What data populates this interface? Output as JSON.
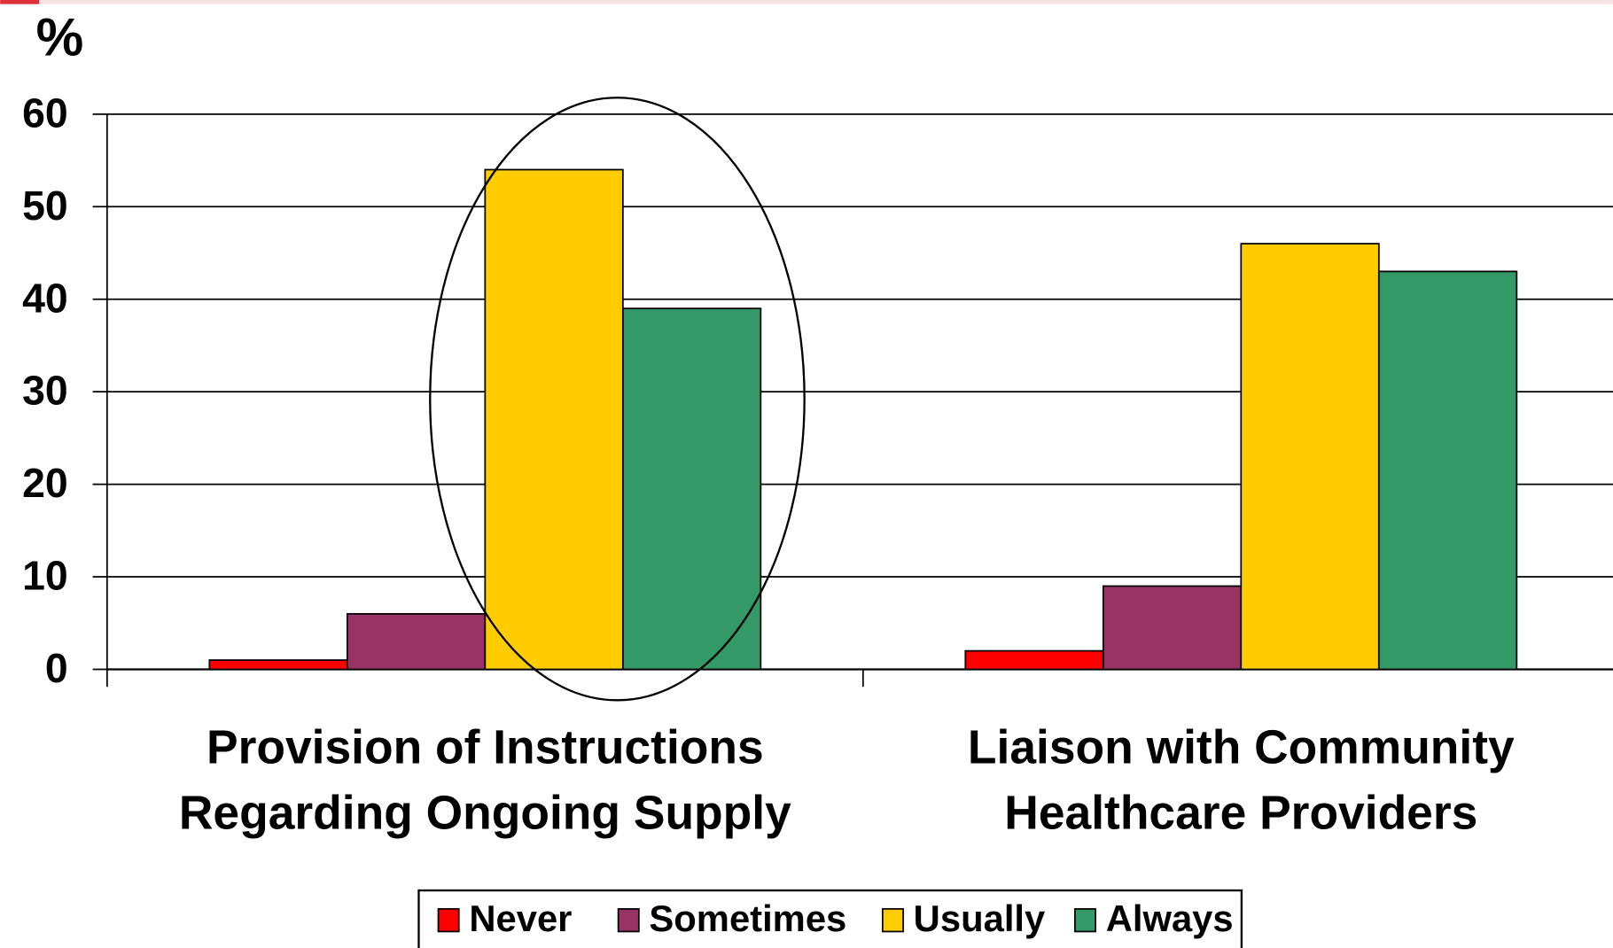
{
  "chart_data": {
    "type": "bar",
    "y_label": "%",
    "categories": [
      [
        "Provision of Instructions",
        "Regarding Ongoing Supply"
      ],
      [
        "Liaison with Community",
        "Healthcare Providers"
      ]
    ],
    "series": [
      {
        "name": "Never",
        "color": "#ff0000",
        "values": [
          1,
          2
        ]
      },
      {
        "name": "Sometimes",
        "color": "#993366",
        "values": [
          6,
          9
        ]
      },
      {
        "name": "Usually",
        "color": "#ffcc00",
        "values": [
          54,
          46
        ]
      },
      {
        "name": "Always",
        "color": "#339966",
        "values": [
          39,
          43
        ]
      }
    ],
    "ylim": [
      0,
      60
    ],
    "yticks": [
      0,
      10,
      20,
      30,
      40,
      50,
      60
    ],
    "grid": true,
    "legend": "bottom"
  }
}
